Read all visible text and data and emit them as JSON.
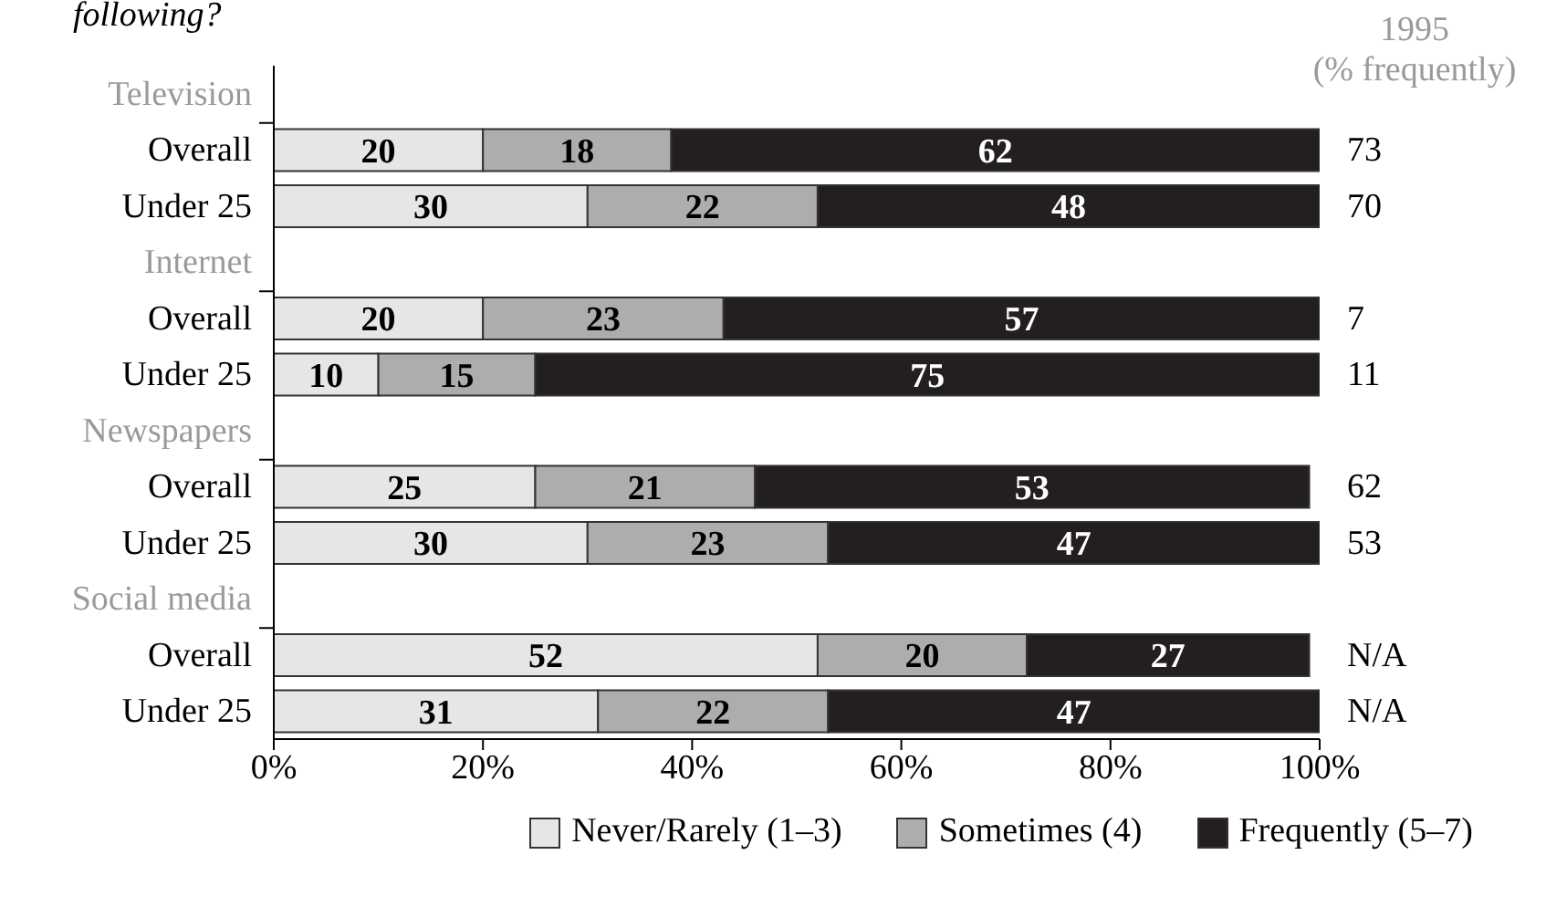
{
  "chart_data": {
    "type": "bar",
    "orientation": "horizontal",
    "stacked": true,
    "title": "following?",
    "categories": [
      "Television",
      "Overall",
      "Under 25",
      "Internet",
      "Overall",
      "Under 25",
      "Newspapers",
      "Overall",
      "Under 25",
      "Social media",
      "Overall",
      "Under 25"
    ],
    "series": [
      {
        "name": "Never/Rarely (1–3)",
        "color": "#e6e6e7",
        "values": [
          null,
          20,
          30,
          null,
          20,
          10,
          null,
          25,
          30,
          null,
          52,
          31
        ]
      },
      {
        "name": "Sometimes (4)",
        "color": "#adadaf",
        "values": [
          null,
          18,
          22,
          null,
          23,
          15,
          null,
          21,
          23,
          null,
          20,
          22
        ]
      },
      {
        "name": "Frequently (5–7)",
        "color": "#231f20",
        "values": [
          null,
          62,
          48,
          null,
          57,
          75,
          null,
          53,
          47,
          null,
          27,
          47
        ]
      }
    ],
    "xlim": [
      0,
      100
    ],
    "xticks": [
      {
        "value": 0,
        "label": "0%"
      },
      {
        "value": 20,
        "label": "20%"
      },
      {
        "value": 40,
        "label": "40%"
      },
      {
        "value": 60,
        "label": "60%"
      },
      {
        "value": 80,
        "label": "80%"
      },
      {
        "value": 100,
        "label": "100%"
      }
    ],
    "data_labels": true,
    "legend": "bottom",
    "grid": false,
    "annotations": [
      "1995\n(% frequently)",
      "73",
      "70",
      "7",
      "11",
      "62",
      "53",
      "N/A",
      "N/A"
    ]
  }
}
